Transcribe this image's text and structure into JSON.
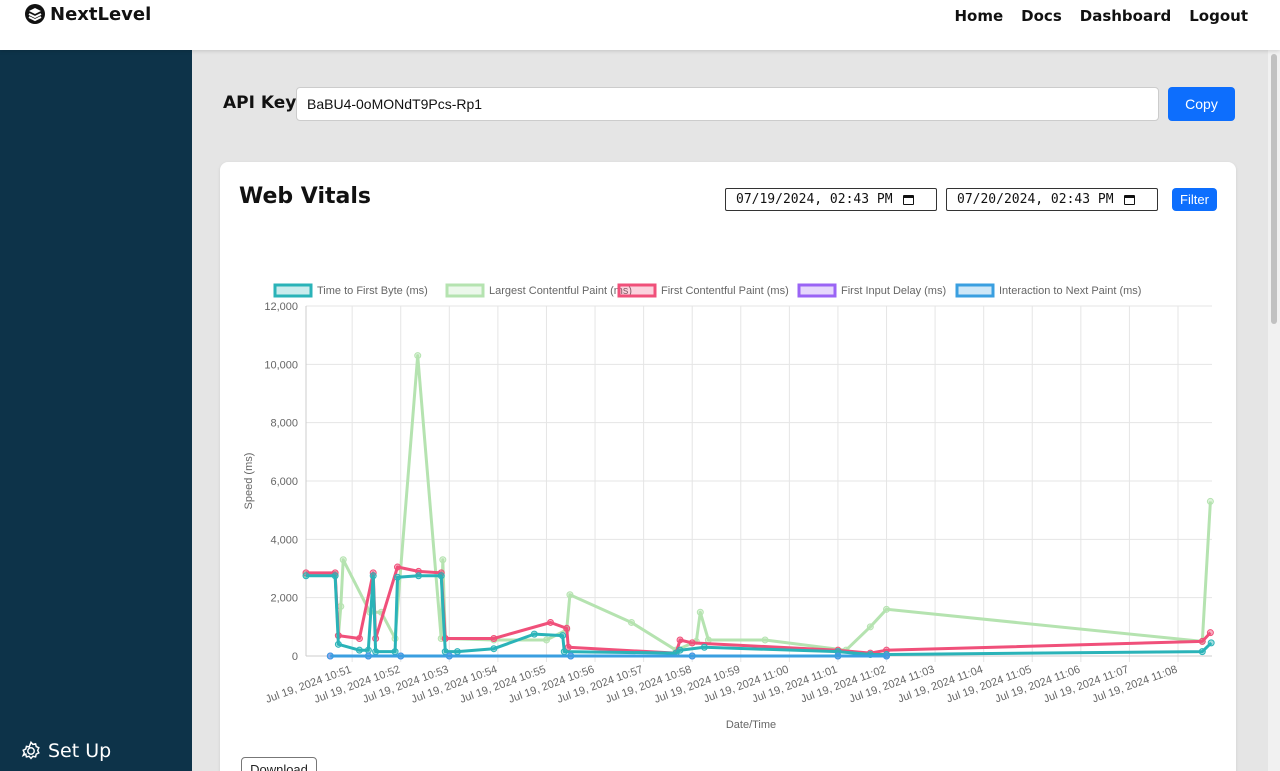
{
  "header": {
    "brand": "NextLevel",
    "nav": [
      "Home",
      "Docs",
      "Dashboard",
      "Logout"
    ]
  },
  "sidebar": {
    "setup_label": "Set Up"
  },
  "api": {
    "label": "API Key",
    "value": "BaBU4-0oMONdT9Pcs-Rp1",
    "copy_label": "Copy"
  },
  "vitals": {
    "title": "Web Vitals",
    "from": "07/19/2024, 02:43 PM",
    "to": "07/20/2024, 02:43 PM",
    "filter_label": "Filter",
    "download_label": "Download"
  },
  "chart_data": {
    "type": "line",
    "title": "",
    "xlabel": "Date/Time",
    "ylabel": "Speed (ms)",
    "ylim": [
      0,
      12000
    ],
    "yticks": [
      0,
      2000,
      4000,
      6000,
      8000,
      10000,
      12000
    ],
    "ytick_labels": [
      "0",
      "2,000",
      "4,000",
      "6,000",
      "8,000",
      "10,000",
      "12,000"
    ],
    "xlim": [
      "10:50:03",
      "11:08:42"
    ],
    "xtick_labels": [
      "Jul 19, 2024 10:51",
      "Jul 19, 2024 10:52",
      "Jul 19, 2024 10:53",
      "Jul 19, 2024 10:54",
      "Jul 19, 2024 10:55",
      "Jul 19, 2024 10:56",
      "Jul 19, 2024 10:57",
      "Jul 19, 2024 10:58",
      "Jul 19, 2024 10:59",
      "Jul 19, 2024 11:00",
      "Jul 19, 2024 11:01",
      "Jul 19, 2024 11:02",
      "Jul 19, 2024 11:03",
      "Jul 19, 2024 11:04",
      "Jul 19, 2024 11:05",
      "Jul 19, 2024 11:06",
      "Jul 19, 2024 11:07",
      "Jul 19, 2024 11:08"
    ],
    "grid": true,
    "legend": "top",
    "series": [
      {
        "name": "Time to First Byte (ms)",
        "color": "#2ab3b8",
        "points": [
          [
            "10:50:03",
            2750
          ],
          [
            "10:50:39",
            2750
          ],
          [
            "10:50:43",
            400
          ],
          [
            "10:51:09",
            200
          ],
          [
            "10:51:20",
            200
          ],
          [
            "10:51:26",
            2750
          ],
          [
            "10:51:29",
            150
          ],
          [
            "10:51:53",
            150
          ],
          [
            "10:51:56",
            2700
          ],
          [
            "10:52:22",
            2750
          ],
          [
            "10:52:50",
            2750
          ],
          [
            "10:52:55",
            150
          ],
          [
            "10:53:10",
            150
          ],
          [
            "10:53:55",
            250
          ],
          [
            "10:54:45",
            750
          ],
          [
            "10:55:20",
            700
          ],
          [
            "10:55:22",
            150
          ],
          [
            "10:57:40",
            100
          ],
          [
            "10:57:45",
            200
          ],
          [
            "10:58:15",
            300
          ],
          [
            "11:01:00",
            150
          ],
          [
            "11:01:40",
            50
          ],
          [
            "11:02:00",
            50
          ],
          [
            "11:08:30",
            150
          ],
          [
            "11:08:41",
            450
          ]
        ]
      },
      {
        "name": "Largest Contentful Paint (ms)",
        "color": "#b5e3b0",
        "points": [
          [
            "10:50:03",
            2800
          ],
          [
            "10:50:39",
            2800
          ],
          [
            "10:50:43",
            700
          ],
          [
            "10:50:46",
            1700
          ],
          [
            "10:50:49",
            3300
          ],
          [
            "10:51:22",
            1500
          ],
          [
            "10:51:36",
            1500
          ],
          [
            "10:51:53",
            600
          ],
          [
            "10:52:21",
            10300
          ],
          [
            "10:52:50",
            600
          ],
          [
            "10:52:52",
            3300
          ],
          [
            "10:52:55",
            600
          ],
          [
            "10:53:55",
            550
          ],
          [
            "10:55:00",
            550
          ],
          [
            "10:55:25",
            900
          ],
          [
            "10:55:29",
            2100
          ],
          [
            "10:56:45",
            1150
          ],
          [
            "10:57:40",
            200
          ],
          [
            "10:58:05",
            500
          ],
          [
            "10:58:10",
            1500
          ],
          [
            "10:58:20",
            550
          ],
          [
            "10:59:30",
            550
          ],
          [
            "11:01:10",
            200
          ],
          [
            "11:01:40",
            1000
          ],
          [
            "11:02:00",
            1600
          ],
          [
            "11:08:30",
            500
          ],
          [
            "11:08:40",
            5300
          ]
        ]
      },
      {
        "name": "First Contentful Paint (ms)",
        "color": "#f0507a",
        "points": [
          [
            "10:50:03",
            2850
          ],
          [
            "10:50:39",
            2850
          ],
          [
            "10:50:43",
            700
          ],
          [
            "10:51:09",
            600
          ],
          [
            "10:51:26",
            2850
          ],
          [
            "10:51:29",
            600
          ],
          [
            "10:51:56",
            3050
          ],
          [
            "10:52:22",
            2900
          ],
          [
            "10:52:50",
            2850
          ],
          [
            "10:52:55",
            600
          ],
          [
            "10:53:55",
            600
          ],
          [
            "10:55:05",
            1150
          ],
          [
            "10:55:25",
            950
          ],
          [
            "10:55:27",
            300
          ],
          [
            "10:57:40",
            100
          ],
          [
            "10:57:45",
            550
          ],
          [
            "10:58:00",
            450
          ],
          [
            "11:01:00",
            200
          ],
          [
            "11:01:40",
            100
          ],
          [
            "11:02:00",
            200
          ],
          [
            "11:08:30",
            500
          ],
          [
            "11:08:40",
            800
          ]
        ]
      },
      {
        "name": "First Input Delay (ms)",
        "color": "#9a64f5",
        "points": [
          [
            "10:50:33",
            0
          ],
          [
            "10:51:20",
            0
          ],
          [
            "10:52:00",
            0
          ],
          [
            "10:53:00",
            0
          ],
          [
            "10:55:30",
            0
          ],
          [
            "10:58:00",
            0
          ],
          [
            "11:01:00",
            0
          ],
          [
            "11:02:00",
            0
          ]
        ]
      },
      {
        "name": "Interaction to Next Paint (ms)",
        "color": "#3a9fe0",
        "points": [
          [
            "10:50:33",
            0
          ],
          [
            "10:51:20",
            0
          ],
          [
            "10:52:00",
            0
          ],
          [
            "10:53:00",
            0
          ],
          [
            "10:55:30",
            0
          ],
          [
            "10:58:00",
            0
          ],
          [
            "11:01:00",
            0
          ],
          [
            "11:02:00",
            0
          ]
        ]
      }
    ]
  }
}
